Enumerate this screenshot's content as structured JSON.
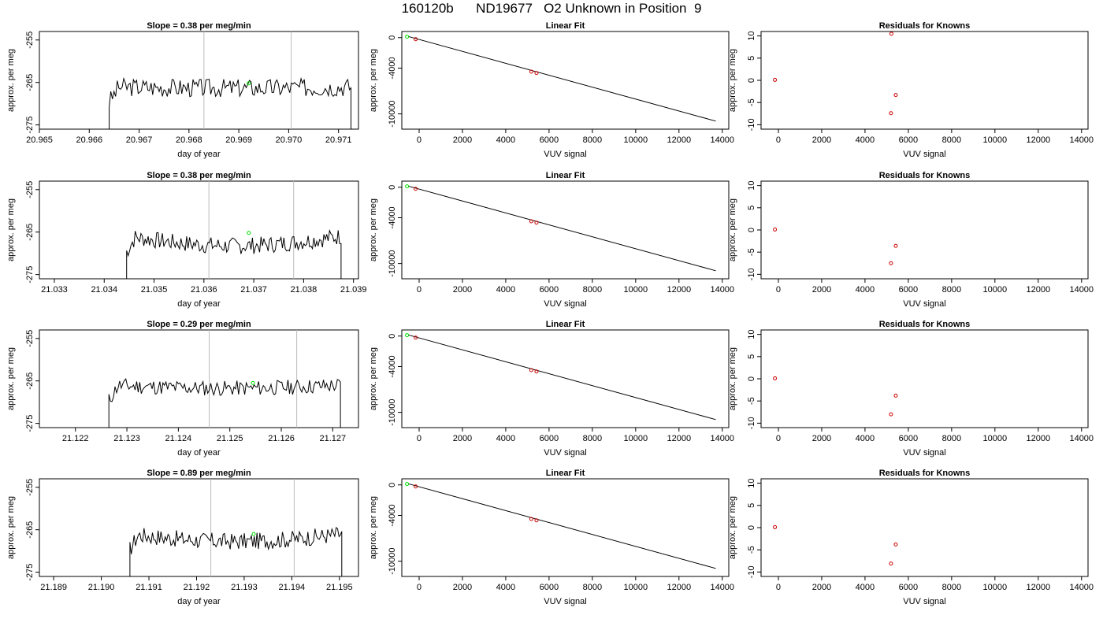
{
  "page_title": "160120b      ND19677   O2 Unknown in Position  9",
  "colors": {
    "trace": "#000000",
    "vertical_marker": "#bbbbbb",
    "known_point": "#cc0000",
    "unknown_point": "#00dd00",
    "fit_line": "#000000"
  },
  "chart_data": [
    {
      "type": "line",
      "title": "Slope =  0.38  per meg/min",
      "xlabel": "day of year",
      "ylabel": "approx. per meg",
      "xlim": [
        20.965,
        20.9714
      ],
      "ylim": [
        -276,
        -253
      ],
      "xticks": [
        "20.965",
        "20.966",
        "20.967",
        "20.968",
        "20.969",
        "20.970",
        "20.971"
      ],
      "yticks": [
        "-255",
        "-265",
        "-275"
      ],
      "series": [
        {
          "x_start": 20.9664,
          "x_end": 20.97125,
          "baseline": -266,
          "amplitude": 2.2,
          "seed": 3,
          "arch": 0.6
        }
      ],
      "vlines": [
        20.9683,
        20.97005
      ],
      "unknown_point": [
        20.9692,
        -265.2
      ]
    },
    {
      "type": "scatter",
      "title": "Linear Fit",
      "xlabel": "VUV signal",
      "ylabel": "approx. per meg",
      "xlim": [
        -800,
        14300
      ],
      "ylim": [
        -12000,
        800
      ],
      "xticks": [
        "0",
        "2000",
        "4000",
        "6000",
        "8000",
        "10000",
        "12000",
        "14000"
      ],
      "yticks": [
        "0",
        "-4000",
        "-10000"
      ],
      "fit_line": [
        [
          -500,
          150
        ],
        [
          13700,
          -10950
        ]
      ],
      "known_points": [
        [
          -160,
          -210
        ],
        [
          5180,
          -4460
        ],
        [
          5420,
          -4640
        ]
      ],
      "unknown_points": [
        [
          -560,
          120
        ]
      ]
    },
    {
      "type": "scatter",
      "title": "Residuals for Knowns",
      "xlabel": "VUV signal",
      "ylabel": "approx. per meg",
      "xlim": [
        -800,
        14300
      ],
      "ylim": [
        -11,
        11
      ],
      "xticks": [
        "0",
        "2000",
        "4000",
        "6000",
        "8000",
        "10000",
        "12000",
        "14000"
      ],
      "yticks": [
        "10",
        "5",
        "0",
        "-5",
        "-10"
      ],
      "points": [
        [
          -160,
          0.1
        ],
        [
          5220,
          10.5
        ],
        [
          5420,
          -3.3
        ],
        [
          5200,
          -7.4
        ]
      ]
    },
    {
      "type": "line",
      "title": "Slope =  0.38  per meg/min",
      "xlabel": "day of year",
      "ylabel": "approx. per meg",
      "xlim": [
        21.0327,
        21.0391
      ],
      "ylim": [
        -276,
        -253
      ],
      "xticks": [
        "21.033",
        "21.034",
        "21.035",
        "21.036",
        "21.037",
        "21.038",
        "21.039"
      ],
      "yticks": [
        "-255",
        "-265",
        "-275"
      ],
      "series": [
        {
          "x_start": 21.03445,
          "x_end": 21.03875,
          "baseline": -266,
          "amplitude": 2.0,
          "seed": 7,
          "arch": 4.5
        }
      ],
      "vlines": [
        21.0361,
        21.0378
      ],
      "unknown_point": [
        21.0369,
        -265.2
      ]
    },
    {
      "type": "scatter",
      "title": "Linear Fit",
      "xlabel": "VUV signal",
      "ylabel": "approx. per meg",
      "xlim": [
        -800,
        14300
      ],
      "ylim": [
        -12000,
        800
      ],
      "xticks": [
        "0",
        "2000",
        "4000",
        "6000",
        "8000",
        "10000",
        "12000",
        "14000"
      ],
      "yticks": [
        "0",
        "-4000",
        "-10000"
      ],
      "fit_line": [
        [
          -500,
          150
        ],
        [
          13700,
          -10950
        ]
      ],
      "known_points": [
        [
          -160,
          -210
        ],
        [
          5180,
          -4460
        ],
        [
          5420,
          -4640
        ]
      ],
      "unknown_points": [
        [
          -560,
          120
        ]
      ]
    },
    {
      "type": "scatter",
      "title": "Residuals for Knowns",
      "xlabel": "VUV signal",
      "ylabel": "approx. per meg",
      "xlim": [
        -800,
        14300
      ],
      "ylim": [
        -11,
        11
      ],
      "xticks": [
        "0",
        "2000",
        "4000",
        "6000",
        "8000",
        "10000",
        "12000",
        "14000"
      ],
      "yticks": [
        "10",
        "5",
        "0",
        "-5",
        "-10"
      ],
      "points": [
        [
          -160,
          0.1
        ],
        [
          5420,
          -3.6
        ],
        [
          5200,
          -7.5
        ]
      ]
    },
    {
      "type": "line",
      "title": "Slope =  0.29  per meg/min",
      "xlabel": "day of year",
      "ylabel": "approx. per meg",
      "xlim": [
        21.1213,
        21.1275
      ],
      "ylim": [
        -276,
        -253
      ],
      "xticks": [
        "21.122",
        "21.123",
        "21.124",
        "21.125",
        "21.126",
        "21.127"
      ],
      "yticks": [
        "-255",
        "-265",
        "-275"
      ],
      "series": [
        {
          "x_start": 21.12265,
          "x_end": 21.12715,
          "baseline": -266,
          "amplitude": 1.8,
          "seed": 11,
          "arch": 1.5
        }
      ],
      "vlines": [
        21.1246,
        21.1263
      ],
      "unknown_point": [
        21.12545,
        -265.5
      ]
    },
    {
      "type": "scatter",
      "title": "Linear Fit",
      "xlabel": "VUV signal",
      "ylabel": "approx. per meg",
      "xlim": [
        -800,
        14300
      ],
      "ylim": [
        -12000,
        800
      ],
      "xticks": [
        "0",
        "2000",
        "4000",
        "6000",
        "8000",
        "10000",
        "12000",
        "14000"
      ],
      "yticks": [
        "0",
        "-4000",
        "-10000"
      ],
      "fit_line": [
        [
          -500,
          150
        ],
        [
          13700,
          -10950
        ]
      ],
      "known_points": [
        [
          -160,
          -210
        ],
        [
          5180,
          -4460
        ],
        [
          5420,
          -4640
        ]
      ],
      "unknown_points": [
        [
          -560,
          120
        ]
      ]
    },
    {
      "type": "scatter",
      "title": "Residuals for Knowns",
      "xlabel": "VUV signal",
      "ylabel": "approx. per meg",
      "xlim": [
        -800,
        14300
      ],
      "ylim": [
        -11,
        11
      ],
      "xticks": [
        "0",
        "2000",
        "4000",
        "6000",
        "8000",
        "10000",
        "12000",
        "14000"
      ],
      "yticks": [
        "10",
        "5",
        "0",
        "-5",
        "-10"
      ],
      "points": [
        [
          -160,
          0.1
        ],
        [
          5420,
          -3.8
        ],
        [
          5200,
          -8.0
        ]
      ]
    },
    {
      "type": "line",
      "title": "Slope =  0.89  per meg/min",
      "xlabel": "day of year",
      "ylabel": "approx. per meg",
      "xlim": [
        21.1887,
        21.1954
      ],
      "ylim": [
        -276,
        -253
      ],
      "xticks": [
        "21.189",
        "21.190",
        "21.191",
        "21.192",
        "21.193",
        "21.194",
        "21.195"
      ],
      "yticks": [
        "-255",
        "-265",
        "-275"
      ],
      "series": [
        {
          "x_start": 21.1906,
          "x_end": 21.19505,
          "baseline": -266,
          "amplitude": 2.0,
          "seed": 17,
          "arch": 3.5
        }
      ],
      "vlines": [
        21.1923,
        21.19405
      ],
      "unknown_point": [
        21.1932,
        -266.0
      ]
    },
    {
      "type": "scatter",
      "title": "Linear Fit",
      "xlabel": "VUV signal",
      "ylabel": "approx. per meg",
      "xlim": [
        -800,
        14300
      ],
      "ylim": [
        -12000,
        800
      ],
      "xticks": [
        "0",
        "2000",
        "4000",
        "6000",
        "8000",
        "10000",
        "12000",
        "14000"
      ],
      "yticks": [
        "0",
        "-4000",
        "-10000"
      ],
      "fit_line": [
        [
          -500,
          150
        ],
        [
          13700,
          -10950
        ]
      ],
      "known_points": [
        [
          -160,
          -210
        ],
        [
          5180,
          -4460
        ],
        [
          5420,
          -4640
        ]
      ],
      "unknown_points": [
        [
          -560,
          120
        ]
      ]
    },
    {
      "type": "scatter",
      "title": "Residuals for Knowns",
      "xlabel": "VUV signal",
      "ylabel": "approx. per meg",
      "xlim": [
        -800,
        14300
      ],
      "ylim": [
        -11,
        11
      ],
      "xticks": [
        "0",
        "2000",
        "4000",
        "6000",
        "8000",
        "10000",
        "12000",
        "14000"
      ],
      "yticks": [
        "10",
        "5",
        "0",
        "-5",
        "-10"
      ],
      "points": [
        [
          -160,
          0.1
        ],
        [
          5420,
          -3.8
        ],
        [
          5200,
          -8.1
        ]
      ]
    }
  ]
}
